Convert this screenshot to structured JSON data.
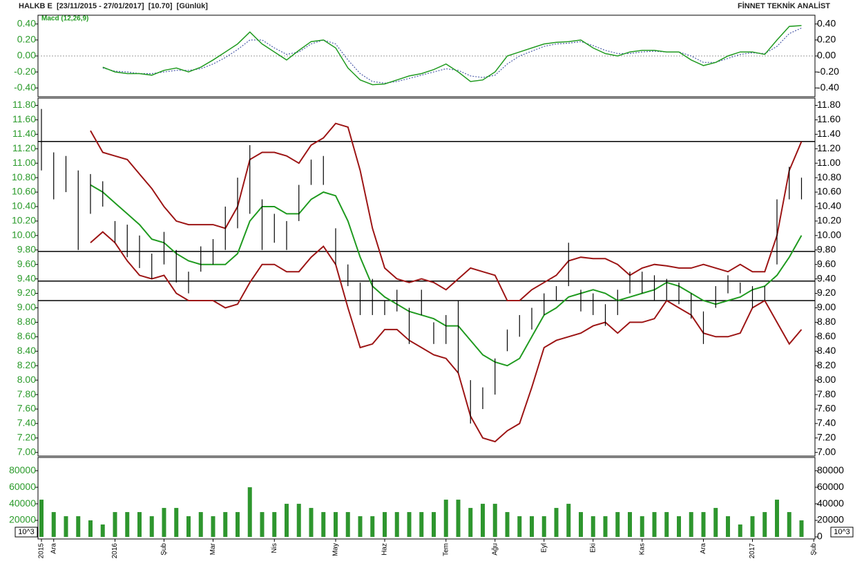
{
  "header": {
    "title": "HALKB E  [23/11/2015 - 27/01/2017]  [10.70]  [Günlük]",
    "brand": "FİNNET TEKNİK ANALİST"
  },
  "chart_data": [
    {
      "type": "macd",
      "title": "Macd (12,26,9)",
      "macd": [
        null,
        null,
        null,
        null,
        null,
        -0.14,
        -0.2,
        -0.22,
        -0.22,
        -0.24,
        -0.18,
        -0.15,
        -0.2,
        -0.14,
        -0.05,
        0.05,
        0.15,
        0.3,
        0.15,
        0.05,
        -0.05,
        0.07,
        0.18,
        0.2,
        0.1,
        -0.15,
        -0.3,
        -0.36,
        -0.35,
        -0.3,
        -0.25,
        -0.22,
        -0.17,
        -0.1,
        -0.2,
        -0.32,
        -0.3,
        -0.2,
        0.0,
        0.05,
        0.1,
        0.15,
        0.17,
        0.18,
        0.2,
        0.1,
        0.03,
        0.0,
        0.05,
        0.07,
        0.07,
        0.05,
        0.05,
        -0.05,
        -0.12,
        -0.08,
        0.0,
        0.05,
        0.05,
        0.02,
        0.2,
        0.37,
        0.38,
        null
      ],
      "signal": [
        null,
        null,
        null,
        null,
        null,
        -0.15,
        -0.19,
        -0.2,
        -0.22,
        -0.22,
        -0.2,
        -0.18,
        -0.18,
        -0.16,
        -0.1,
        -0.02,
        0.08,
        0.2,
        0.2,
        0.1,
        0.02,
        0.05,
        0.15,
        0.2,
        0.15,
        -0.05,
        -0.22,
        -0.32,
        -0.34,
        -0.32,
        -0.28,
        -0.24,
        -0.2,
        -0.16,
        -0.18,
        -0.25,
        -0.27,
        -0.24,
        -0.1,
        0.0,
        0.06,
        0.12,
        0.15,
        0.16,
        0.18,
        0.13,
        0.07,
        0.03,
        0.03,
        0.05,
        0.06,
        0.05,
        0.05,
        0.0,
        -0.08,
        -0.08,
        -0.03,
        0.02,
        0.04,
        0.03,
        0.12,
        0.28,
        0.35,
        null
      ],
      "macd_color": "#1f9a1f",
      "signal_color": "#4a5aa8",
      "zero_line": true,
      "ylim": [
        -0.51,
        0.51
      ],
      "yticks": [
        {
          "value": 0.4,
          "label": "0.40"
        },
        {
          "value": 0.2,
          "label": "0.20"
        },
        {
          "value": 0,
          "label": "0.00"
        },
        {
          "value": -0.2,
          "label": "-0.20"
        },
        {
          "value": -0.4,
          "label": "-0.40"
        }
      ]
    },
    {
      "type": "hilo",
      "high": [
        11.75,
        11.15,
        11.1,
        10.9,
        10.85,
        10.75,
        10.2,
        10.15,
        10.0,
        9.75,
        10.05,
        9.8,
        9.5,
        9.85,
        9.95,
        10.4,
        10.8,
        11.25,
        10.5,
        10.3,
        10.2,
        10.7,
        11.05,
        11.1,
        10.1,
        9.6,
        9.35,
        9.4,
        9.1,
        9.25,
        9.0,
        9.25,
        8.8,
        8.9,
        9.1,
        8.0,
        7.9,
        8.3,
        8.7,
        8.9,
        9.0,
        9.2,
        9.3,
        9.9,
        9.25,
        9.2,
        9.05,
        9.25,
        9.5,
        9.5,
        9.45,
        9.4,
        9.35,
        9.2,
        8.95,
        9.3,
        9.45,
        9.35,
        9.3,
        9.3,
        10.5,
        10.95,
        10.8,
        null
      ],
      "low": [
        10.9,
        10.5,
        10.6,
        9.8,
        10.3,
        10.4,
        9.9,
        9.7,
        9.55,
        9.4,
        9.6,
        9.35,
        9.2,
        9.5,
        9.6,
        9.8,
        10.1,
        10.3,
        9.8,
        9.9,
        9.8,
        10.2,
        10.7,
        10.7,
        9.6,
        9.3,
        8.9,
        8.9,
        8.9,
        8.95,
        8.5,
        8.9,
        8.5,
        8.5,
        8.1,
        7.4,
        7.6,
        7.8,
        8.4,
        8.6,
        8.7,
        8.9,
        9.1,
        9.3,
        8.95,
        8.9,
        8.75,
        8.9,
        9.2,
        9.2,
        9.1,
        9.1,
        9.05,
        8.85,
        8.5,
        9.0,
        9.2,
        9.2,
        9.0,
        9.1,
        9.6,
        10.5,
        10.5,
        null
      ],
      "upper": [
        null,
        null,
        null,
        null,
        11.45,
        11.15,
        11.1,
        11.05,
        10.85,
        10.65,
        10.4,
        10.2,
        10.15,
        10.15,
        10.15,
        10.1,
        10.4,
        11.05,
        11.15,
        11.15,
        11.1,
        11.0,
        11.25,
        11.35,
        11.55,
        11.5,
        10.9,
        10.1,
        9.55,
        9.4,
        9.35,
        9.4,
        9.35,
        9.25,
        9.4,
        9.55,
        9.5,
        9.45,
        9.1,
        9.1,
        9.25,
        9.35,
        9.45,
        9.65,
        9.7,
        9.68,
        9.68,
        9.6,
        9.45,
        9.55,
        9.6,
        9.58,
        9.55,
        9.55,
        9.6,
        9.55,
        9.5,
        9.6,
        9.5,
        9.5,
        10.0,
        10.9,
        11.3,
        null
      ],
      "middle": [
        null,
        null,
        null,
        null,
        10.7,
        10.6,
        10.45,
        10.3,
        10.15,
        9.95,
        9.9,
        9.75,
        9.65,
        9.6,
        9.6,
        9.6,
        9.75,
        10.2,
        10.4,
        10.4,
        10.3,
        10.3,
        10.5,
        10.6,
        10.55,
        10.2,
        9.7,
        9.3,
        9.15,
        9.05,
        8.95,
        8.9,
        8.85,
        8.75,
        8.75,
        8.55,
        8.35,
        8.25,
        8.2,
        8.3,
        8.6,
        8.9,
        9.0,
        9.15,
        9.2,
        9.25,
        9.2,
        9.1,
        9.15,
        9.2,
        9.25,
        9.35,
        9.3,
        9.2,
        9.1,
        9.05,
        9.1,
        9.15,
        9.25,
        9.3,
        9.45,
        9.7,
        10.0,
        null
      ],
      "lower": [
        null,
        null,
        null,
        null,
        9.9,
        10.05,
        9.9,
        9.65,
        9.45,
        9.4,
        9.45,
        9.2,
        9.1,
        9.1,
        9.1,
        9.0,
        9.05,
        9.35,
        9.6,
        9.6,
        9.5,
        9.5,
        9.7,
        9.85,
        9.6,
        9.0,
        8.45,
        8.5,
        8.7,
        8.7,
        8.55,
        8.45,
        8.35,
        8.3,
        8.1,
        7.5,
        7.2,
        7.15,
        7.3,
        7.4,
        7.9,
        8.45,
        8.55,
        8.6,
        8.65,
        8.75,
        8.8,
        8.65,
        8.8,
        8.8,
        8.85,
        9.1,
        9.0,
        8.9,
        8.65,
        8.6,
        8.6,
        8.65,
        9.0,
        9.1,
        8.8,
        8.5,
        8.7,
        null
      ],
      "levels": [
        11.3,
        9.78,
        9.37,
        9.1
      ],
      "bar_color": "#000000",
      "band_color": "#9c1414",
      "middle_color": "#1f9a1f",
      "level_color": "#000000",
      "ylim": [
        6.95,
        11.9
      ],
      "yticks": [
        {
          "value": 11.8,
          "label": "11.80"
        },
        {
          "value": 11.6,
          "label": "11.60"
        },
        {
          "value": 11.4,
          "label": "11.40"
        },
        {
          "value": 11.2,
          "label": "11.20"
        },
        {
          "value": 11.0,
          "label": "11.00"
        },
        {
          "value": 10.8,
          "label": "10.80"
        },
        {
          "value": 10.6,
          "label": "10.60"
        },
        {
          "value": 10.4,
          "label": "10.40"
        },
        {
          "value": 10.2,
          "label": "10.20"
        },
        {
          "value": 10.0,
          "label": "10.00"
        },
        {
          "value": 9.8,
          "label": "9.80"
        },
        {
          "value": 9.6,
          "label": "9.60"
        },
        {
          "value": 9.4,
          "label": "9.40"
        },
        {
          "value": 9.2,
          "label": "9.20"
        },
        {
          "value": 9.0,
          "label": "9.00"
        },
        {
          "value": 8.8,
          "label": "8.80"
        },
        {
          "value": 8.6,
          "label": "8.60"
        },
        {
          "value": 8.4,
          "label": "8.40"
        },
        {
          "value": 8.2,
          "label": "8.20"
        },
        {
          "value": 8.0,
          "label": "8.00"
        },
        {
          "value": 7.8,
          "label": "7.80"
        },
        {
          "value": 7.6,
          "label": "7.60"
        },
        {
          "value": 7.4,
          "label": "7.40"
        },
        {
          "value": 7.2,
          "label": "7.20"
        },
        {
          "value": 7.0,
          "label": "7.00"
        }
      ]
    },
    {
      "type": "bar",
      "unit_label": "10^3",
      "color": "#2e962e",
      "categories": [
        "2015",
        "Ara",
        null,
        null,
        null,
        null,
        "2016",
        null,
        null,
        null,
        "Şub",
        null,
        null,
        null,
        "Mar",
        null,
        null,
        null,
        null,
        "Nis",
        null,
        null,
        null,
        null,
        "May",
        null,
        null,
        null,
        "Haz",
        null,
        null,
        null,
        null,
        "Tem",
        null,
        null,
        null,
        "Ağu",
        null,
        null,
        null,
        "Eyl",
        null,
        null,
        null,
        "Eki",
        null,
        null,
        null,
        "Kas",
        null,
        null,
        null,
        null,
        "Ara",
        null,
        null,
        null,
        "2017",
        null,
        null,
        null,
        null,
        "Şub"
      ],
      "values": [
        45000,
        30000,
        25000,
        25000,
        20000,
        15000,
        30000,
        30000,
        30000,
        25000,
        35000,
        35000,
        25000,
        30000,
        25000,
        30000,
        30000,
        60000,
        30000,
        30000,
        40000,
        40000,
        35000,
        30000,
        30000,
        30000,
        25000,
        25000,
        30000,
        30000,
        30000,
        30000,
        30000,
        45000,
        45000,
        35000,
        40000,
        40000,
        30000,
        25000,
        25000,
        25000,
        35000,
        40000,
        30000,
        25000,
        25000,
        30000,
        30000,
        25000,
        30000,
        30000,
        25000,
        30000,
        30000,
        35000,
        25000,
        15000,
        25000,
        30000,
        45000,
        30000,
        20000,
        null
      ],
      "ylim": [
        -2500,
        96000
      ],
      "yticks": [
        80000,
        60000,
        40000,
        20000,
        0
      ]
    }
  ]
}
